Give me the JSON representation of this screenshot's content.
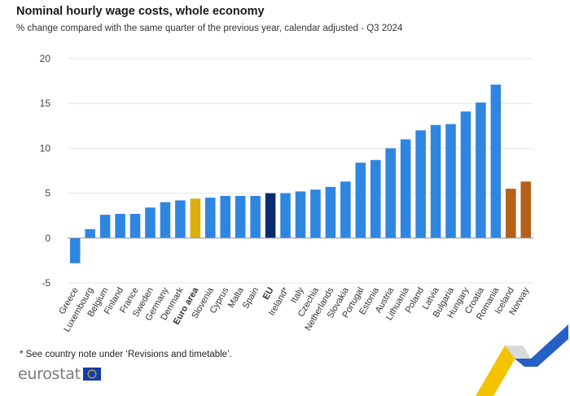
{
  "chart_data": {
    "type": "bar",
    "title": "Nominal hourly wage costs, whole economy",
    "subtitle": "% change compared with the same quarter of the previous year, calendar adjusted - Q3 2024",
    "ylim": [
      -5,
      20
    ],
    "yticks": [
      -5,
      0,
      5,
      10,
      15,
      20
    ],
    "categories": [
      "Greece",
      "Luxembourg",
      "Belgium",
      "Finland",
      "France",
      "Sweden",
      "Germany",
      "Denmark",
      "Euro area",
      "Slovenia",
      "Cyprus",
      "Malta",
      "Spain",
      "EU",
      "Ireland*",
      "Italy",
      "Czechia",
      "Netherlands",
      "Slovakia",
      "Portugal",
      "Estonia",
      "Austria",
      "Lithuania",
      "Poland",
      "Latvia",
      "Bulgaria",
      "Hungary",
      "Croatia",
      "Romania",
      "Iceland",
      "Norway"
    ],
    "values": [
      -2.8,
      1.0,
      2.6,
      2.7,
      2.7,
      3.4,
      4.0,
      4.2,
      4.4,
      4.5,
      4.7,
      4.7,
      4.7,
      5.0,
      5.0,
      5.2,
      5.4,
      5.7,
      6.3,
      8.4,
      8.7,
      10.0,
      11.0,
      12.0,
      12.6,
      12.7,
      14.1,
      15.1,
      17.1,
      5.5,
      6.3
    ],
    "bar_groups": [
      "member",
      "member",
      "member",
      "member",
      "member",
      "member",
      "member",
      "member",
      "euro_area",
      "member",
      "member",
      "member",
      "member",
      "eu",
      "member",
      "member",
      "member",
      "member",
      "member",
      "member",
      "member",
      "member",
      "member",
      "member",
      "member",
      "member",
      "member",
      "member",
      "member",
      "efta",
      "efta"
    ],
    "bold_categories": [
      "Euro area",
      "EU"
    ],
    "colors": {
      "member": "#2f86e0",
      "euro_area": "#dcae0e",
      "eu": "#0b2a6f",
      "efta": "#b5611a",
      "grid": "#e6e6e6",
      "axis": "#9a9a9a"
    },
    "grid": true,
    "legend": "none"
  },
  "footnote": "* See country note under ‘Revisions and timetable’.",
  "logo": {
    "text": "eurostat",
    "flag_icon": "eu-flag-icon"
  }
}
